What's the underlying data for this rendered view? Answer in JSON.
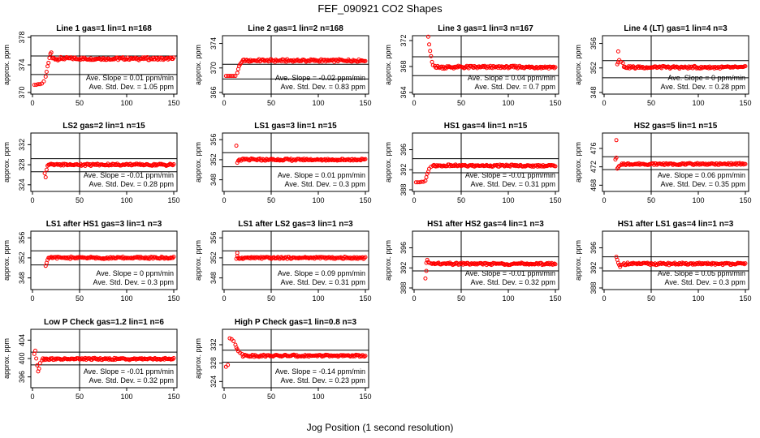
{
  "figure": {
    "title": "FEF_090921  CO2 Shapes",
    "xlabel": "Jog Position (1 second resolution)"
  },
  "colors": {
    "points": "#ff0000",
    "axes": "#000000",
    "background": "#ffffff"
  },
  "chart_data": [
    {
      "type": "scatter",
      "title": "Line 1 gas=1 lin=1 n=168",
      "ylabel": "approx. ppm",
      "xlim": [
        0,
        150
      ],
      "xticks": [
        0,
        50,
        100,
        150
      ],
      "ylim": [
        370,
        378
      ],
      "yticks": [
        370,
        374,
        378
      ],
      "xline": 50,
      "hlines": [
        372.6,
        375.3
      ],
      "slope_text": "Ave. Slope =  0.01  ppm/min",
      "std_text": "Ave. Std. Dev. =  1.05  ppm",
      "points": [
        [
          2,
          371.1
        ],
        [
          4,
          371.1
        ],
        [
          6,
          371.2
        ],
        [
          8,
          371.2
        ],
        [
          10,
          371.3
        ],
        [
          12,
          371.6
        ],
        [
          14,
          372.3
        ],
        [
          15,
          373
        ],
        [
          16,
          373.8
        ],
        [
          17,
          374.3
        ],
        [
          18,
          375
        ],
        [
          19,
          375.6
        ],
        [
          20,
          375.8
        ]
      ],
      "base": 374.9
    },
    {
      "type": "scatter",
      "title": "Line 2 gas=1 lin=2 n=168",
      "ylabel": "approx. ppm",
      "xlim": [
        0,
        150
      ],
      "xticks": [
        0,
        50,
        100,
        150
      ],
      "ylim": [
        366,
        375
      ],
      "yticks": [
        366,
        370,
        374
      ],
      "xline": 50,
      "hlines": [
        370.6,
        368.2
      ],
      "slope_text": "Ave. Slope = -0.02  ppm/min",
      "std_text": "Ave. Std. Dev. =  0.83  ppm",
      "points": [
        [
          2,
          368.7
        ],
        [
          4,
          368.7
        ],
        [
          6,
          368.7
        ],
        [
          8,
          368.7
        ],
        [
          10,
          368.7
        ],
        [
          12,
          368.7
        ],
        [
          14,
          369.2
        ],
        [
          15,
          369.8
        ],
        [
          16,
          370.3
        ],
        [
          17,
          370.6
        ],
        [
          18,
          370.8
        ],
        [
          19,
          371
        ]
      ],
      "base": 371.2
    },
    {
      "type": "scatter",
      "title": "Line 3 gas=1 lin=3 n=167",
      "ylabel": "approx. ppm",
      "xlim": [
        0,
        150
      ],
      "xticks": [
        0,
        50,
        100,
        150
      ],
      "ylim": [
        364,
        372.5
      ],
      "yticks": [
        364,
        368,
        372
      ],
      "xline": 50,
      "hlines": [
        366.6,
        369.5
      ],
      "slope_text": "Ave. Slope =  0.04  ppm/min",
      "std_text": "Ave. Std. Dev. =  0.7  ppm",
      "points": [
        [
          15,
          372.6
        ],
        [
          16,
          371.4
        ],
        [
          17,
          370.4
        ],
        [
          18,
          369.6
        ],
        [
          19,
          368.7
        ],
        [
          20,
          368.2
        ],
        [
          22,
          368.1
        ]
      ],
      "base": 367.9
    },
    {
      "type": "scatter",
      "title": "Line 4 (LT) gas=1 lin=4 n=3",
      "ylabel": "approx. ppm",
      "xlim": [
        0,
        150
      ],
      "xticks": [
        0,
        50,
        100,
        150
      ],
      "ylim": [
        348,
        357
      ],
      "yticks": [
        348,
        352,
        356
      ],
      "xline": 50,
      "hlines": [
        350.4,
        353.2
      ],
      "slope_text": "Ave. Slope =  0  ppm/min",
      "std_text": "Ave. Std. Dev. =  0.28  ppm",
      "points": [
        [
          14,
          352.6
        ],
        [
          15,
          352.9
        ],
        [
          15,
          354.7
        ],
        [
          16,
          353.3
        ],
        [
          18,
          353
        ],
        [
          20,
          352.8
        ]
      ],
      "base": 352.1
    },
    {
      "type": "scatter",
      "title": "LS2 gas=2 lin=1 n=15",
      "ylabel": "approx. ppm",
      "xlim": [
        0,
        150
      ],
      "xticks": [
        0,
        50,
        100,
        150
      ],
      "ylim": [
        323,
        334
      ],
      "yticks": [
        324,
        328,
        332
      ],
      "xline": 50,
      "hlines": [
        326.6,
        329.2
      ],
      "slope_text": "Ave. Slope = -0.01  ppm/min",
      "std_text": "Ave. Std. Dev. =  0.28  ppm",
      "points": [
        [
          13,
          326.3
        ],
        [
          14,
          325.5
        ],
        [
          15,
          327
        ],
        [
          16,
          327.8
        ],
        [
          17,
          328
        ],
        [
          18,
          328
        ]
      ],
      "base": 328
    },
    {
      "type": "scatter",
      "title": "LS1 gas=3 lin=1 n=15",
      "ylabel": "approx. ppm",
      "xlim": [
        0,
        150
      ],
      "xticks": [
        0,
        50,
        100,
        150
      ],
      "ylim": [
        346,
        357
      ],
      "yticks": [
        348,
        352,
        356
      ],
      "xline": 50,
      "hlines": [
        350.6,
        353.4
      ],
      "slope_text": "Ave. Slope =  0.01  ppm/min",
      "std_text": "Ave. Std. Dev. =  0.3  ppm",
      "points": [
        [
          13,
          354.8
        ],
        [
          14,
          351.4
        ],
        [
          15,
          351.8
        ],
        [
          16,
          352
        ],
        [
          17,
          352
        ]
      ],
      "base": 352
    },
    {
      "type": "scatter",
      "title": "HS1 gas=4 lin=1 n=15",
      "ylabel": "approx. ppm",
      "xlim": [
        0,
        150
      ],
      "xticks": [
        0,
        50,
        100,
        150
      ],
      "ylim": [
        388,
        399
      ],
      "yticks": [
        388,
        392,
        396
      ],
      "xline": 50,
      "hlines": [
        391.4,
        394.2
      ],
      "slope_text": "Ave. Slope = -0.01  ppm/min",
      "std_text": "Ave. Std. Dev. =  0.31  ppm",
      "points": [
        [
          2,
          389.5
        ],
        [
          4,
          389.5
        ],
        [
          6,
          389.5
        ],
        [
          8,
          389.6
        ],
        [
          10,
          389.6
        ],
        [
          12,
          389.8
        ],
        [
          13,
          390.5
        ],
        [
          14,
          391.2
        ],
        [
          15,
          391.6
        ],
        [
          16,
          392.2
        ],
        [
          18,
          392.6
        ],
        [
          20,
          392.8
        ]
      ],
      "base": 392.8
    },
    {
      "type": "scatter",
      "title": "HS2 gas=5 lin=1 n=15",
      "ylabel": "approx. ppm",
      "xlim": [
        0,
        150
      ],
      "xticks": [
        0,
        50,
        100,
        150
      ],
      "ylim": [
        467,
        479
      ],
      "yticks": [
        468,
        472,
        476
      ],
      "xline": 50,
      "hlines": [
        471.4,
        474.2
      ],
      "slope_text": "Ave. Slope =  0.06  ppm/min",
      "std_text": "Ave. Std. Dev. =  0.35  ppm",
      "points": [
        [
          12,
          473.6
        ],
        [
          13,
          474
        ],
        [
          13,
          477.8
        ],
        [
          14,
          471.6
        ],
        [
          15,
          471.9
        ],
        [
          16,
          472.2
        ],
        [
          18,
          472.4
        ]
      ],
      "base": 472.6
    },
    {
      "type": "scatter",
      "title": "LS1 after HS1 gas=3 lin=1 n=3",
      "ylabel": "approx. ppm",
      "xlim": [
        0,
        150
      ],
      "xticks": [
        0,
        50,
        100,
        150
      ],
      "ylim": [
        346,
        357
      ],
      "yticks": [
        348,
        352,
        356
      ],
      "xline": 50,
      "hlines": [
        350.6,
        353.4
      ],
      "slope_text": "Ave. Slope =  0  ppm/min",
      "std_text": "Ave. Std. Dev. =  0.3  ppm",
      "points": [
        [
          14,
          350.4
        ],
        [
          15,
          351
        ],
        [
          16,
          351.6
        ],
        [
          17,
          352
        ],
        [
          18,
          352
        ]
      ],
      "base": 352
    },
    {
      "type": "scatter",
      "title": "LS1 after LS2 gas=3 lin=1 n=3",
      "ylabel": "approx. ppm",
      "xlim": [
        0,
        150
      ],
      "xticks": [
        0,
        50,
        100,
        150
      ],
      "ylim": [
        346,
        357
      ],
      "yticks": [
        348,
        352,
        356
      ],
      "xline": 50,
      "hlines": [
        350.6,
        353.4
      ],
      "slope_text": "Ave. Slope =  0.09  ppm/min",
      "std_text": "Ave. Std. Dev. =  0.31  ppm",
      "points": [
        [
          13,
          351.8
        ],
        [
          14,
          353
        ],
        [
          14,
          352.4
        ],
        [
          15,
          352
        ],
        [
          16,
          351.8
        ]
      ],
      "base": 352
    },
    {
      "type": "scatter",
      "title": "HS1 after HS2 gas=4 lin=1 n=3",
      "ylabel": "approx. ppm",
      "xlim": [
        0,
        150
      ],
      "xticks": [
        0,
        50,
        100,
        150
      ],
      "ylim": [
        388,
        399
      ],
      "yticks": [
        388,
        392,
        396
      ],
      "xline": 50,
      "hlines": [
        391.4,
        394.2
      ],
      "slope_text": "Ave. Slope = -0.01  ppm/min",
      "std_text": "Ave. Std. Dev. =  0.32  ppm",
      "points": [
        [
          12,
          389.9
        ],
        [
          13,
          391.4
        ],
        [
          13,
          393
        ],
        [
          14,
          393.6
        ],
        [
          15,
          393.2
        ],
        [
          16,
          393
        ],
        [
          18,
          392.9
        ]
      ],
      "base": 392.8
    },
    {
      "type": "scatter",
      "title": "HS1 after LS1 gas=4 lin=1 n=3",
      "ylabel": "approx. ppm",
      "xlim": [
        0,
        150
      ],
      "xticks": [
        0,
        50,
        100,
        150
      ],
      "ylim": [
        388,
        399
      ],
      "yticks": [
        388,
        392,
        396
      ],
      "xline": 50,
      "hlines": [
        391.4,
        394.2
      ],
      "slope_text": "Ave. Slope =  0.05  ppm/min",
      "std_text": "Ave. Std. Dev. =  0.3  ppm",
      "points": [
        [
          13,
          394.2
        ],
        [
          14,
          393.6
        ],
        [
          15,
          393
        ],
        [
          16,
          392.6
        ],
        [
          17,
          392.2
        ],
        [
          18,
          392.6
        ],
        [
          20,
          392.7
        ]
      ],
      "base": 392.8
    },
    {
      "type": "scatter",
      "title": "Low P Check gas=1.2 lin=1 n=6",
      "ylabel": "approx. ppm",
      "xlim": [
        0,
        150
      ],
      "xticks": [
        0,
        50,
        100,
        150
      ],
      "ylim": [
        394,
        406
      ],
      "yticks": [
        396,
        400,
        404
      ],
      "xline": 50,
      "hlines": [
        398.6,
        401.4
      ],
      "slope_text": "Ave. Slope = -0.01  ppm/min",
      "std_text": "Ave. Std. Dev. =  0.32  ppm",
      "points": [
        [
          2,
          401
        ],
        [
          3,
          401.7
        ],
        [
          4,
          400
        ],
        [
          5,
          398.5
        ],
        [
          6,
          397.2
        ],
        [
          7,
          397.8
        ],
        [
          8,
          399
        ],
        [
          10,
          399.6
        ]
      ],
      "base": 399.9
    },
    {
      "type": "scatter",
      "title": "High P Check gas=1 lin=0.8 n=3",
      "ylabel": "approx. ppm",
      "xlim": [
        0,
        150
      ],
      "xticks": [
        0,
        50,
        100,
        150
      ],
      "ylim": [
        323,
        335
      ],
      "yticks": [
        324,
        328,
        332
      ],
      "xline": 50,
      "hlines": [
        328.2,
        330.8
      ],
      "slope_text": "Ave. Slope = -0.14  ppm/min",
      "std_text": "Ave. Std. Dev. =  0.23  ppm",
      "points": [
        [
          2,
          327.2
        ],
        [
          4,
          327.6
        ],
        [
          6,
          333.4
        ],
        [
          8,
          333.2
        ],
        [
          10,
          332.8
        ],
        [
          12,
          332
        ],
        [
          13,
          331.4
        ],
        [
          14,
          331
        ],
        [
          15,
          330.6
        ],
        [
          17,
          330.2
        ],
        [
          19,
          330
        ]
      ],
      "base": 329.6
    }
  ]
}
